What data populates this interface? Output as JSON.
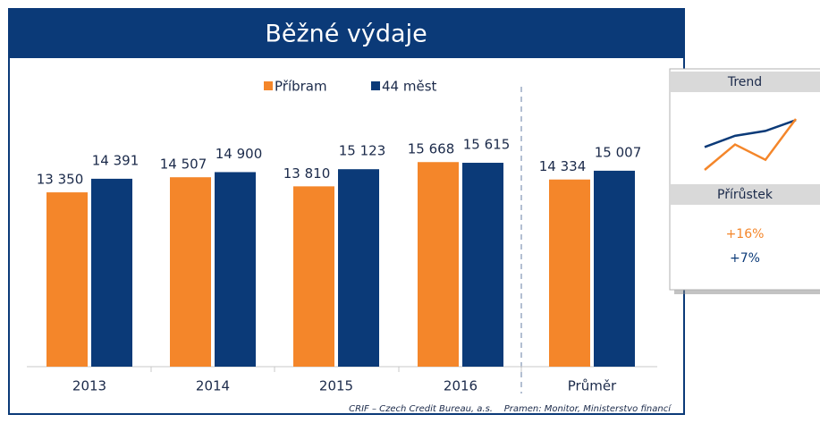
{
  "chart_data": {
    "type": "bar",
    "title": "Běžné výdaje",
    "categories": [
      "2013",
      "2014",
      "2015",
      "2016",
      "Průměr"
    ],
    "series": [
      {
        "name": "Příbram",
        "color": "#f4862a",
        "values": [
          13350,
          14507,
          13810,
          15668,
          14334
        ],
        "value_labels": [
          "13 350",
          "14 507",
          "13 810",
          "15 668",
          "14 334"
        ]
      },
      {
        "name": "44 měst",
        "color": "#0b3a78",
        "values": [
          14391,
          14900,
          15123,
          15615,
          15007
        ],
        "value_labels": [
          "14 391",
          "14 900",
          "15 123",
          "15 615",
          "15 007"
        ]
      }
    ],
    "ylim": [
      0,
      20000
    ],
    "footnote": "CRIF – Czech Credit Bureau, a.s.    Pramen: Monitor, Ministerstvo financí",
    "trend_panel": {
      "title": "Trend",
      "growth_title": "Přírůstek",
      "growth": [
        "+16%",
        "+7%"
      ]
    }
  }
}
